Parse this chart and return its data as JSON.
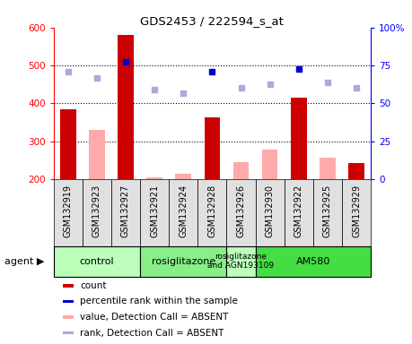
{
  "title": "GDS2453 / 222594_s_at",
  "samples": [
    "GSM132919",
    "GSM132923",
    "GSM132927",
    "GSM132921",
    "GSM132924",
    "GSM132928",
    "GSM132926",
    "GSM132930",
    "GSM132922",
    "GSM132925",
    "GSM132929"
  ],
  "count_present": [
    385,
    null,
    580,
    null,
    null,
    363,
    null,
    null,
    415,
    null,
    242
  ],
  "count_absent": [
    null,
    330,
    null,
    205,
    213,
    null,
    245,
    278,
    null,
    256,
    null
  ],
  "rank_present": [
    null,
    null,
    510,
    null,
    null,
    483,
    null,
    null,
    490,
    null,
    null
  ],
  "rank_absent": [
    483,
    468,
    null,
    437,
    426,
    null,
    440,
    450,
    null,
    455,
    440
  ],
  "ylim": [
    200,
    600
  ],
  "yticks_left": [
    200,
    300,
    400,
    500,
    600
  ],
  "yticks_right": [
    0,
    25,
    50,
    75,
    100
  ],
  "hlines": [
    300,
    400,
    500
  ],
  "agent_groups": [
    {
      "label": "control",
      "start": 0,
      "end": 3,
      "color": "#bbffbb"
    },
    {
      "label": "rosiglitazone",
      "start": 3,
      "end": 6,
      "color": "#88ee88"
    },
    {
      "label": "rosiglitazone\nand AGN193109",
      "start": 6,
      "end": 7,
      "color": "#bbffbb"
    },
    {
      "label": "AM580",
      "start": 7,
      "end": 11,
      "color": "#44dd44"
    }
  ],
  "bar_width": 0.55,
  "color_count_present": "#cc0000",
  "color_count_absent": "#ffaaaa",
  "color_rank_present": "#0000cc",
  "color_rank_absent": "#aaaadd",
  "legend_items": [
    {
      "color": "#cc0000",
      "label": "count"
    },
    {
      "color": "#0000cc",
      "label": "percentile rank within the sample"
    },
    {
      "color": "#ffaaaa",
      "label": "value, Detection Call = ABSENT"
    },
    {
      "color": "#aaaadd",
      "label": "rank, Detection Call = ABSENT"
    }
  ]
}
